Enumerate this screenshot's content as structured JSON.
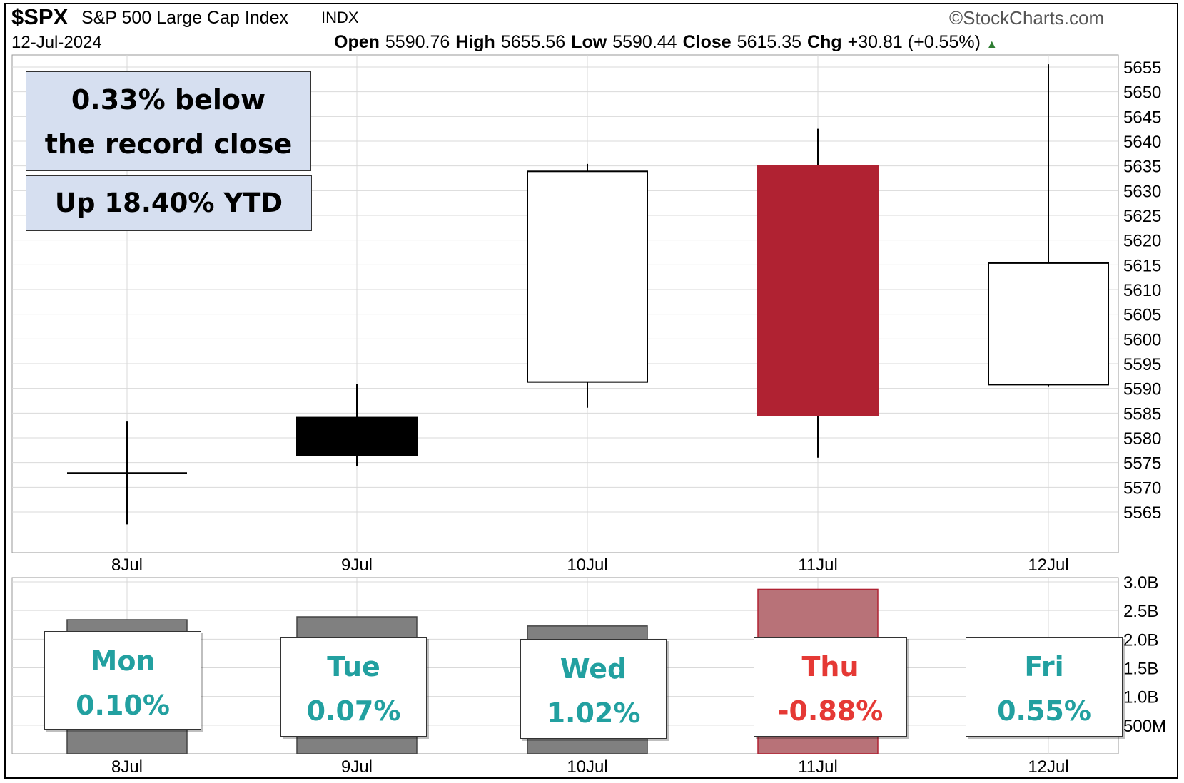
{
  "header": {
    "symbol": "$SPX",
    "index_name": "S&P 500 Large Cap Index",
    "exchange": "INDX",
    "source": "©StockCharts.com",
    "date": "12-Jul-2024",
    "open_label": "Open",
    "open_value": "5590.76",
    "high_label": "High",
    "high_value": "5655.56",
    "low_label": "Low",
    "low_value": "5590.44",
    "close_label": "Close",
    "close_value": "5615.35",
    "chg_label": "Chg",
    "chg_value": "+30.81 (+0.55%)",
    "chg_arrow": "▲"
  },
  "annotations": {
    "record_line1": "0.33% below",
    "record_line2": "the record close",
    "ytd": "Up 18.40% YTD"
  },
  "day_boxes": [
    {
      "day": "Mon",
      "pct": "0.10%",
      "color": "#22a0a0"
    },
    {
      "day": "Tue",
      "pct": "0.07%",
      "color": "#22a0a0"
    },
    {
      "day": "Wed",
      "pct": "1.02%",
      "color": "#22a0a0"
    },
    {
      "day": "Thu",
      "pct": "-0.88%",
      "color": "#e53935"
    },
    {
      "day": "Fri",
      "pct": "0.55%",
      "color": "#22a0a0"
    }
  ],
  "colors": {
    "up_fill": "#ffffff",
    "down_fill": "#000000",
    "down_red": "#b02232",
    "volume_gray": "#808080",
    "volume_red": "#b87278",
    "grid": "#d9d9d9"
  },
  "chart_data": [
    {
      "type": "candlestick",
      "categories": [
        "8Jul",
        "9Jul",
        "10Jul",
        "11Jul",
        "12Jul"
      ],
      "ohlc": [
        {
          "open": 5572.9,
          "high": 5583.3,
          "low": 5562.5,
          "close": 5572.9,
          "style": "doji"
        },
        {
          "open": 5584.1,
          "high": 5590.9,
          "low": 5574.3,
          "close": 5576.4,
          "style": "black"
        },
        {
          "open": 5591.3,
          "high": 5635.4,
          "low": 5586.1,
          "close": 5633.9,
          "style": "hollow"
        },
        {
          "open": 5635.0,
          "high": 5642.5,
          "low": 5576.0,
          "close": 5584.5,
          "style": "red"
        },
        {
          "open": 5590.76,
          "high": 5655.56,
          "low": 5590.44,
          "close": 5615.35,
          "style": "hollow"
        }
      ],
      "y_ticks": [
        5565,
        5570,
        5575,
        5580,
        5585,
        5590,
        5595,
        5600,
        5605,
        5610,
        5615,
        5620,
        5625,
        5630,
        5635,
        5640,
        5645,
        5650,
        5655
      ],
      "ylim": [
        5561,
        5657
      ],
      "grid": true
    },
    {
      "type": "bar",
      "categories": [
        "8Jul",
        "9Jul",
        "10Jul",
        "11Jul",
        "12Jul"
      ],
      "values": [
        2.34,
        2.39,
        2.23,
        2.87,
        null
      ],
      "unit": "B",
      "y_tick_labels": [
        "3.0B",
        "2.5B",
        "2.0B",
        "1.5B",
        "1.0B",
        "500M"
      ],
      "y_tick_values": [
        3.0,
        2.5,
        2.0,
        1.5,
        1.0,
        0.5
      ],
      "ylim": [
        0,
        3.1
      ],
      "grid": true
    }
  ]
}
